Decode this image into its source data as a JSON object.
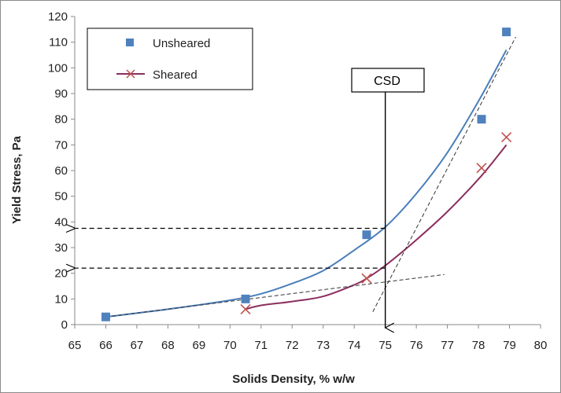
{
  "chart_data": {
    "type": "scatter",
    "xlabel": "Solids Density, % w/w",
    "ylabel": "Yield Stress, Pa",
    "xlim": [
      65,
      80
    ],
    "ylim": [
      0,
      120
    ],
    "x_ticks": [
      65,
      66,
      67,
      68,
      69,
      70,
      71,
      72,
      73,
      74,
      75,
      76,
      77,
      78,
      79,
      80
    ],
    "y_ticks": [
      0,
      10,
      20,
      30,
      40,
      50,
      60,
      70,
      80,
      90,
      100,
      110,
      120
    ],
    "legend_position": "top-left",
    "series": [
      {
        "name": "Unsheared",
        "marker": "square",
        "color": "#4f81bd",
        "points": [
          [
            66.0,
            3
          ],
          [
            70.5,
            10
          ],
          [
            74.4,
            35
          ],
          [
            78.1,
            80
          ],
          [
            78.9,
            114
          ]
        ],
        "trend_color": "#4a7ebb",
        "trend": [
          [
            66.0,
            3
          ],
          [
            68,
            6
          ],
          [
            70,
            9.5
          ],
          [
            71,
            12
          ],
          [
            72,
            16
          ],
          [
            73,
            21
          ],
          [
            74,
            29
          ],
          [
            75,
            38
          ],
          [
            76,
            51
          ],
          [
            77,
            67
          ],
          [
            78,
            87
          ],
          [
            78.9,
            107
          ]
        ]
      },
      {
        "name": "Sheared",
        "marker": "x",
        "color": "#c0504d",
        "points": [
          [
            70.5,
            6
          ],
          [
            74.4,
            18
          ],
          [
            78.1,
            61
          ],
          [
            78.9,
            73
          ]
        ],
        "line_color": "#8b2e5e",
        "line": [
          [
            70.5,
            6
          ],
          [
            71,
            7.5
          ],
          [
            72,
            9
          ],
          [
            73,
            11
          ],
          [
            74,
            15.5
          ],
          [
            74.4,
            18
          ],
          [
            75,
            23
          ],
          [
            76,
            33
          ],
          [
            77,
            44
          ],
          [
            78.1,
            58
          ],
          [
            78.9,
            70
          ]
        ]
      }
    ],
    "annotations": {
      "csd_label": "CSD",
      "csd_x": 75,
      "dashed_arrows_y": [
        37.5,
        22
      ],
      "tangent_lines": [
        [
          [
            66,
            3
          ],
          [
            76.9,
            19.5
          ]
        ],
        [
          [
            74.6,
            5
          ],
          [
            79.2,
            112
          ]
        ]
      ]
    }
  }
}
